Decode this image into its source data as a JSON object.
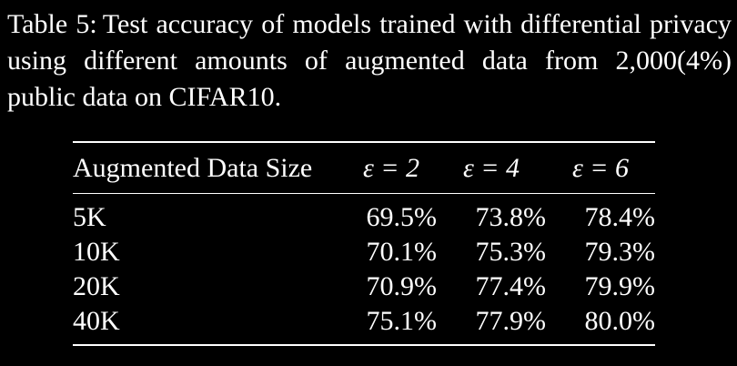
{
  "caption": {
    "label": "Table 5:",
    "text": "Test accuracy of models trained with differential privacy using different amounts of augmented data from 2,000(4%) public data on CIFAR10."
  },
  "table": {
    "headers": [
      "Augmented Data Size",
      "ε = 2",
      "ε = 4",
      "ε = 6"
    ],
    "rows": [
      [
        "5K",
        "69.5%",
        "73.8%",
        "78.4%"
      ],
      [
        "10K",
        "70.1%",
        "75.3%",
        "79.3%"
      ],
      [
        "20K",
        "70.9%",
        "77.4%",
        "79.9%"
      ],
      [
        "40K",
        "75.1%",
        "77.9%",
        "80.0%"
      ]
    ]
  }
}
